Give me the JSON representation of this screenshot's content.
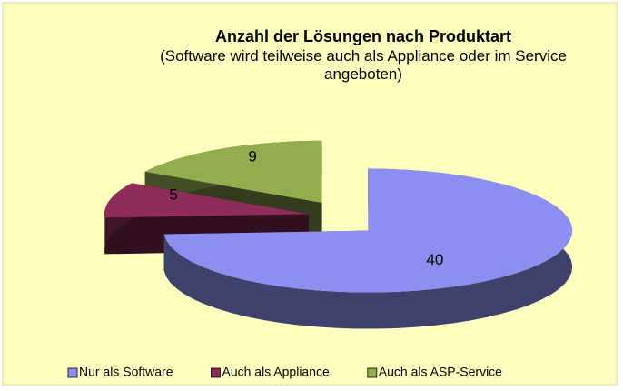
{
  "chart_data": {
    "type": "pie",
    "title": "Anzahl der Lösungen nach Produktart",
    "subtitle": "(Software wird teilweise auch als Appliance oder im Service angeboten)",
    "categories": [
      "Nur als Software",
      "Auch als Appliance",
      "Auch als ASP-Service"
    ],
    "values": [
      40,
      5,
      9
    ],
    "colors": [
      "#8c8ff0",
      "#8e2c5a",
      "#93ad4e"
    ],
    "legend": "bottom"
  }
}
